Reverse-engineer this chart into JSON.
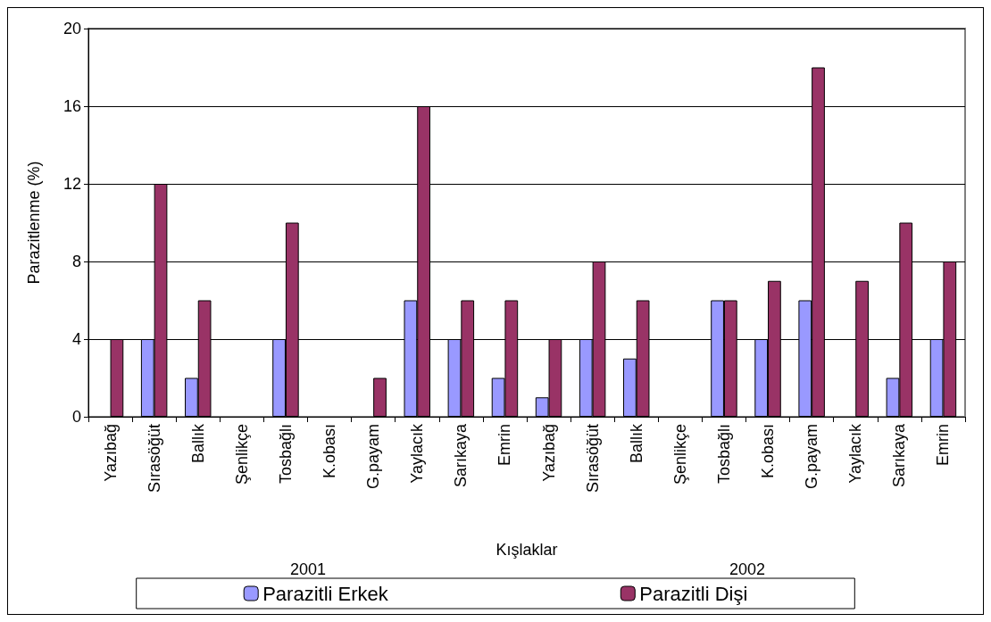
{
  "chart_data": {
    "type": "bar",
    "xlabel": "Kışlaklar",
    "ylabel": "Parazitlenme (%)",
    "categories": [
      "Yazıbağ",
      "Sırasöğüt",
      "Ballık",
      "Şenlikçe",
      "Tosbağlı",
      "K.obası",
      "G.payam",
      "Yaylacık",
      "Sarıkaya",
      "Emrin",
      "Yazıbağ",
      "Sırasöğüt",
      "Ballık",
      "Şenlikçe",
      "Tosbağlı",
      "K.obası",
      "G.payam",
      "Yaylacık",
      "Sarıkaya",
      "Emrin"
    ],
    "series": [
      {
        "name": "Parazitli Erkek",
        "color": "#9999ff",
        "values": [
          0,
          4,
          2,
          0,
          4,
          0,
          0,
          6,
          4,
          2,
          1,
          4,
          3,
          0,
          6,
          4,
          6,
          0,
          2,
          4
        ]
      },
      {
        "name": "Parazitli Dişi",
        "color": "#993366",
        "values": [
          4,
          12,
          6,
          0,
          10,
          0,
          2,
          16,
          6,
          6,
          4,
          8,
          6,
          0,
          6,
          7,
          18,
          7,
          10,
          8
        ]
      }
    ],
    "ylim": [
      0,
      20
    ],
    "yticks": [
      0,
      4,
      8,
      12,
      16,
      20
    ],
    "grid": "y",
    "legend": "bottom",
    "annotations": [
      "2001",
      "2002"
    ]
  }
}
